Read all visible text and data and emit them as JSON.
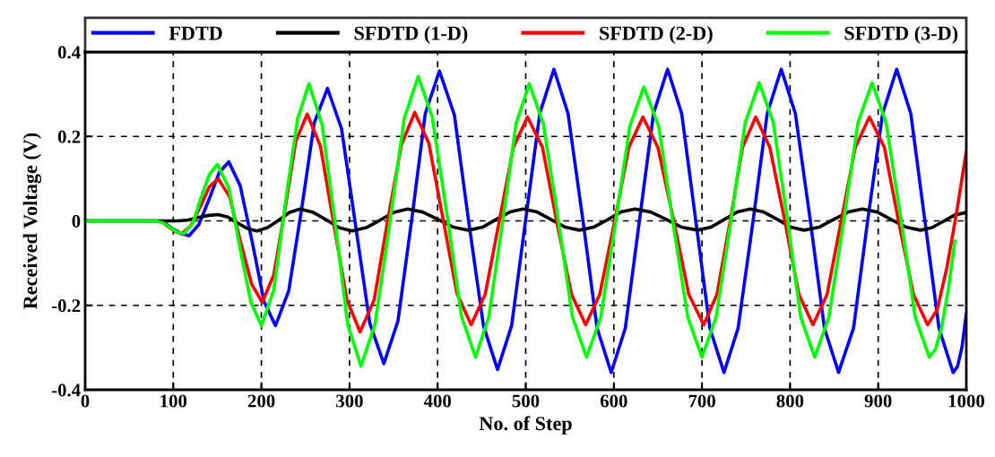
{
  "chart_data": {
    "type": "line",
    "xlabel": "No. of Step",
    "ylabel": "Received Voltage (V)",
    "xlim": [
      0,
      1000
    ],
    "xticks": [
      0,
      100,
      200,
      300,
      400,
      500,
      600,
      700,
      800,
      900,
      1000
    ],
    "ylim": [
      -0.4,
      0.4
    ],
    "yticks": [
      -0.4,
      -0.2,
      0,
      0.2,
      0.4
    ],
    "grid": true,
    "legend": "top",
    "line_style": "solid",
    "series": [
      {
        "name": "FDTD",
        "color": "#0000ff",
        "x": [
          0,
          80,
          90,
          99,
          109,
          118,
          129,
          141,
          152,
          163,
          176,
          190,
          203,
          216,
          231,
          246,
          260,
          275,
          291,
          307,
          323,
          339,
          355,
          371,
          386,
          402,
          419,
          435,
          452,
          468,
          484,
          500,
          516,
          532,
          548,
          565,
          581,
          597,
          613,
          629,
          645,
          661,
          677,
          693,
          709,
          725,
          741,
          758,
          774,
          790,
          806,
          823,
          839,
          855,
          872,
          888,
          905,
          921,
          937,
          953,
          969,
          985,
          990,
          995,
          1000
        ],
        "values": [
          0,
          0,
          -0.005,
          -0.018,
          -0.03,
          -0.035,
          -0.009,
          0.053,
          0.114,
          0.14,
          0.083,
          -0.054,
          -0.191,
          -0.248,
          -0.166,
          0.033,
          0.232,
          0.314,
          0.218,
          -0.012,
          -0.242,
          -0.338,
          -0.237,
          0.009,
          0.254,
          0.355,
          0.251,
          0.002,
          -0.248,
          -0.352,
          -0.248,
          0.004,
          0.255,
          0.359,
          0.254,
          0,
          -0.254,
          -0.359,
          -0.254,
          0,
          0.254,
          0.359,
          0.254,
          0,
          -0.254,
          -0.359,
          -0.254,
          0,
          0.254,
          0.359,
          0.254,
          0,
          -0.254,
          -0.359,
          -0.254,
          0,
          0.254,
          0.359,
          0.254,
          0,
          -0.254,
          -0.359,
          -0.345,
          -0.3,
          -0.22
        ]
      },
      {
        "name": "SFDTD (1-D)",
        "color": "#000000",
        "x": [
          0,
          80,
          105,
          117,
          128,
          140,
          151,
          162,
          173,
          184,
          195,
          207,
          220,
          232,
          244,
          259,
          274,
          288,
          303,
          319,
          335,
          350,
          366,
          383,
          401,
          418,
          435,
          451,
          466,
          482,
          497,
          513,
          529,
          545,
          561,
          577,
          593,
          608,
          624,
          642,
          660,
          677,
          695,
          710,
          725,
          740,
          755,
          770,
          786,
          801,
          816,
          833,
          849,
          866,
          882,
          899,
          915,
          932,
          948,
          961,
          974,
          987,
          1000
        ],
        "values": [
          0,
          0,
          0,
          0.002,
          0.008,
          0.013,
          0.015,
          0.009,
          -0.005,
          -0.018,
          -0.024,
          -0.016,
          0.002,
          0.02,
          0.028,
          0.02,
          0.002,
          -0.016,
          -0.024,
          -0.016,
          0.002,
          0.02,
          0.028,
          0.021,
          0.003,
          -0.015,
          -0.022,
          -0.015,
          0.003,
          0.021,
          0.028,
          0.021,
          0.003,
          -0.015,
          -0.022,
          -0.015,
          0.003,
          0.021,
          0.028,
          0.021,
          0.003,
          -0.015,
          -0.022,
          -0.015,
          0.003,
          0.021,
          0.028,
          0.021,
          0.003,
          -0.015,
          -0.022,
          -0.015,
          0.003,
          0.021,
          0.028,
          0.021,
          0.003,
          -0.015,
          -0.022,
          -0.016,
          -0.001,
          0.014,
          0.02
        ]
      },
      {
        "name": "SFDTD (2-D)",
        "color": "#ff0000",
        "x": [
          88,
          95,
          103,
          110,
          120,
          131,
          141,
          151,
          164,
          176,
          189,
          201,
          214,
          227,
          239,
          252,
          267,
          282,
          297,
          312,
          328,
          343,
          359,
          374,
          390,
          406,
          422,
          438,
          454,
          470,
          486,
          502,
          519,
          535,
          552,
          568,
          584,
          601,
          617,
          633,
          650,
          668,
          685,
          702,
          717,
          732,
          746,
          761,
          777,
          794,
          810,
          826,
          842,
          858,
          874,
          890,
          907,
          923,
          940,
          956,
          967,
          978,
          989,
          1000
        ],
        "values": [
          -0.004,
          -0.015,
          -0.026,
          -0.03,
          -0.011,
          0.035,
          0.081,
          0.1,
          0.057,
          -0.047,
          -0.15,
          -0.193,
          -0.128,
          0.03,
          0.188,
          0.253,
          0.177,
          -0.005,
          -0.187,
          -0.263,
          -0.187,
          -0.003,
          0.181,
          0.257,
          0.184,
          0.006,
          -0.172,
          -0.246,
          -0.174,
          0,
          0.174,
          0.246,
          0.174,
          0,
          -0.174,
          -0.246,
          -0.174,
          0,
          0.174,
          0.246,
          0.174,
          0,
          -0.174,
          -0.246,
          -0.174,
          0,
          0.174,
          0.246,
          0.174,
          0,
          -0.174,
          -0.246,
          -0.174,
          0,
          0.174,
          0.246,
          0.174,
          0,
          -0.174,
          -0.246,
          -0.21,
          -0.11,
          0.02,
          0.165
        ]
      },
      {
        "name": "SFDTD (3-D)",
        "color": "#00ff00",
        "x": [
          0,
          80,
          88,
          96,
          104,
          112,
          122,
          131,
          141,
          150,
          163,
          175,
          188,
          200,
          214,
          227,
          241,
          254,
          269,
          284,
          298,
          313,
          329,
          346,
          362,
          378,
          394,
          411,
          427,
          443,
          458,
          474,
          489,
          504,
          520,
          537,
          553,
          569,
          585,
          602,
          618,
          634,
          651,
          667,
          684,
          700,
          716,
          733,
          749,
          765,
          781,
          797,
          812,
          828,
          844,
          861,
          877,
          893,
          909,
          926,
          942,
          958,
          965,
          972,
          980,
          987
        ],
        "values": [
          0,
          0,
          -0.004,
          -0.015,
          -0.026,
          -0.03,
          -0.006,
          0.052,
          0.11,
          0.134,
          0.078,
          -0.057,
          -0.192,
          -0.248,
          -0.164,
          0.039,
          0.241,
          0.325,
          0.227,
          -0.01,
          -0.246,
          -0.344,
          -0.244,
          -0.001,
          0.242,
          0.342,
          0.245,
          0.01,
          -0.226,
          -0.323,
          -0.228,
          0.001,
          0.23,
          0.325,
          0.23,
          0.001,
          -0.228,
          -0.323,
          -0.229,
          -0.003,
          0.223,
          0.317,
          0.223,
          -0.003,
          -0.229,
          -0.323,
          -0.228,
          0.002,
          0.232,
          0.327,
          0.232,
          0.002,
          -0.228,
          -0.323,
          -0.228,
          0.002,
          0.232,
          0.327,
          0.232,
          0.002,
          -0.228,
          -0.323,
          -0.304,
          -0.252,
          -0.157,
          -0.047
        ]
      }
    ]
  }
}
